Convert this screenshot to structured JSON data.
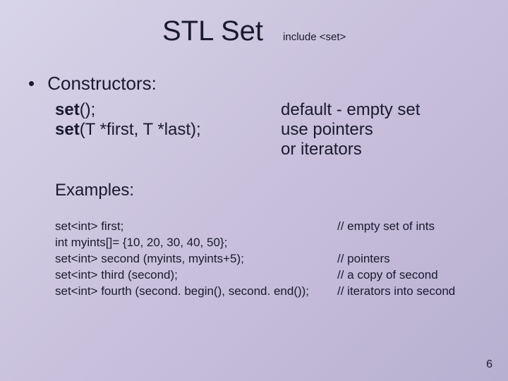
{
  "title": "STL Set",
  "subtitle": "include <set>",
  "bullet": "Constructors:",
  "constructors": {
    "row1": {
      "sig_kw": "set",
      "sig_rest": "();",
      "desc": "default - empty set"
    },
    "row2": {
      "sig_kw": "set",
      "sig_rest": "(T *first, T *last);",
      "desc1": "use pointers",
      "desc2": "or iterators"
    }
  },
  "examplesLabel": "Examples:",
  "code": {
    "l1": {
      "left": "set<int> first;",
      "right": "// empty set of ints"
    },
    "l2": {
      "left": "int myints[]= {10, 20, 30, 40, 50};",
      "right": ""
    },
    "l3": {
      "left": "set<int> second (myints, myints+5);",
      "right": "// pointers"
    },
    "l4": {
      "left": "set<int> third (second);",
      "right": "// a copy of second"
    },
    "l5": {
      "left": "set<int> fourth (second. begin(), second. end());",
      "right": "// iterators into second"
    }
  },
  "pageNumber": "6"
}
